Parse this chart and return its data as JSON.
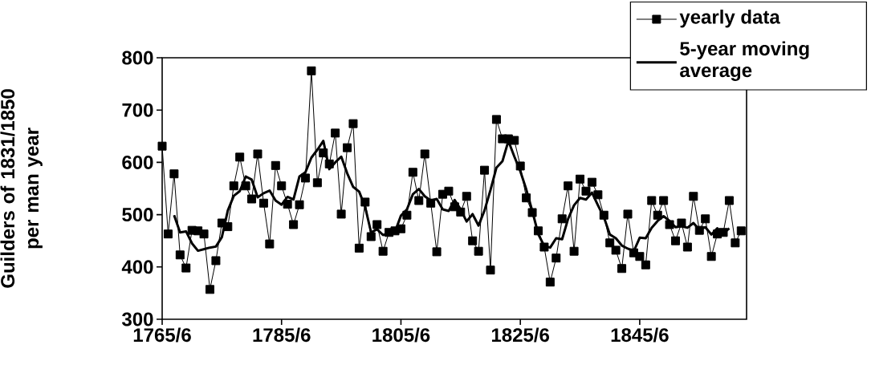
{
  "chart_data": {
    "type": "line",
    "ylabel": "Guilders of 1831/1850 per man year",
    "categories": [
      "1765/6",
      null,
      null,
      null,
      null,
      null,
      null,
      null,
      null,
      null,
      null,
      null,
      null,
      null,
      null,
      null,
      null,
      null,
      null,
      null,
      "1785/6",
      null,
      null,
      null,
      null,
      null,
      null,
      null,
      null,
      null,
      null,
      null,
      null,
      null,
      null,
      null,
      null,
      null,
      null,
      null,
      "1805/6",
      null,
      null,
      null,
      null,
      null,
      null,
      null,
      null,
      null,
      null,
      null,
      null,
      null,
      null,
      null,
      null,
      null,
      null,
      null,
      "1825/6",
      null,
      null,
      null,
      null,
      null,
      null,
      null,
      null,
      null,
      null,
      null,
      null,
      null,
      null,
      null,
      null,
      null,
      null,
      null,
      "1845/6",
      null,
      null,
      null,
      null,
      null,
      null,
      null,
      null,
      null,
      null,
      null,
      null,
      null,
      null,
      null,
      null,
      null
    ],
    "series": [
      {
        "name": "yearly data",
        "color": "#000000",
        "marker": "square",
        "line_style": "solid",
        "values": [
          631,
          463,
          578,
          423,
          398,
          470,
          469,
          463,
          357,
          412,
          484,
          477,
          555,
          610,
          555,
          530,
          616,
          522,
          444,
          594,
          555,
          520,
          481,
          519,
          570,
          775,
          561,
          618,
          597,
          656,
          501,
          628,
          674,
          436,
          524,
          458,
          481,
          430,
          466,
          469,
          473,
          499,
          581,
          527,
          616,
          522,
          429,
          539,
          545,
          515,
          505,
          535,
          450,
          430,
          585,
          394,
          682,
          645,
          645,
          642,
          593,
          532,
          504,
          469,
          438,
          371,
          417,
          492,
          555,
          430,
          568,
          545,
          562,
          538,
          499,
          446,
          432,
          397,
          501,
          427,
          420,
          404,
          527,
          499,
          527,
          481,
          450,
          484,
          438,
          535,
          470,
          492,
          420,
          463,
          466,
          527,
          446,
          469
        ]
      },
      {
        "name": "5-year moving average",
        "color": "#000000",
        "marker": "none",
        "line_style": "solid",
        "values": [
          null,
          null,
          499,
          466,
          468,
          445,
          431,
          434,
          437,
          439,
          457,
          508,
          536,
          545,
          573,
          567,
          533,
          541,
          546,
          527,
          519,
          534,
          529,
          573,
          581,
          609,
          624,
          641,
          587,
          600,
          611,
          579,
          553,
          544,
          515,
          466,
          472,
          461,
          464,
          467,
          498,
          510,
          539,
          549,
          535,
          527,
          530,
          510,
          507,
          528,
          510,
          487,
          501,
          479,
          508,
          547,
          590,
          602,
          641,
          611,
          583,
          548,
          507,
          463,
          440,
          437,
          455,
          453,
          492,
          518,
          532,
          529,
          542,
          518,
          495,
          462,
          455,
          441,
          435,
          430,
          456,
          455,
          475,
          488,
          497,
          488,
          476,
          478,
          475,
          484,
          471,
          476,
          462,
          474,
          464,
          474,
          null,
          null
        ]
      }
    ],
    "ylim": [
      300,
      800
    ],
    "yticks": [
      300,
      400,
      500,
      600,
      700,
      800
    ],
    "grid": false,
    "legend": "top right"
  }
}
